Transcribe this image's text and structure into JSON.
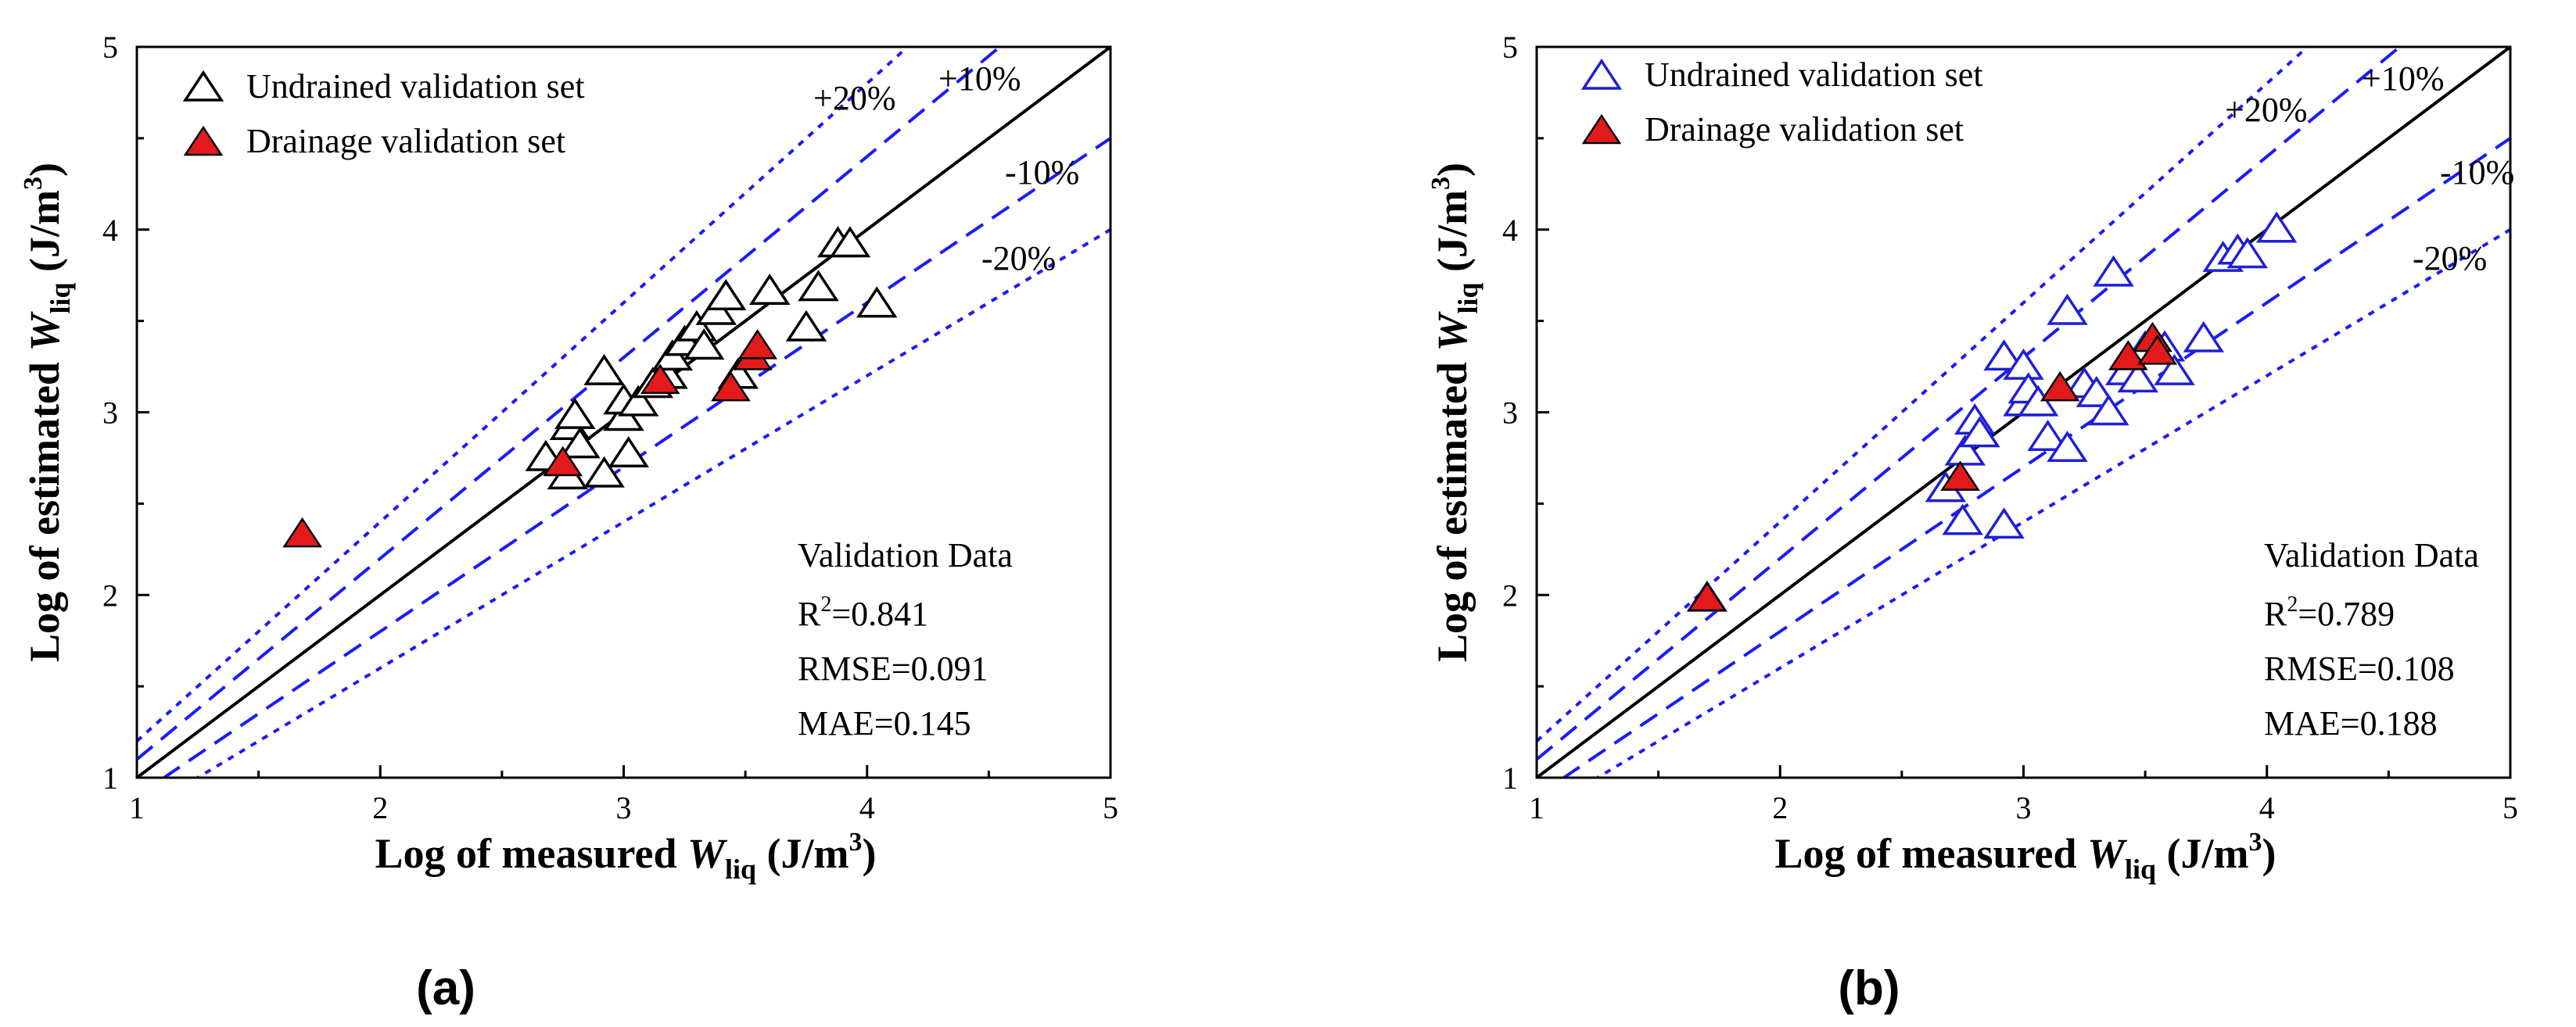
{
  "colors": {
    "identity": "#000000",
    "band10": "#1a1aff",
    "band20": "#1a1aff",
    "drainage_fill": "#e31a1c",
    "undrained_a": "#000000",
    "undrained_b": "#1f1fd6"
  },
  "chart_data": [
    {
      "type": "scatter",
      "panel_label": "(a)",
      "xlabel": {
        "prefix": "Log of measured ",
        "var": "W",
        "sub": "liq",
        "unit_pre": " (J/m",
        "unit_sup": "3",
        "unit_post": ")"
      },
      "ylabel": {
        "prefix": "Log of estimated ",
        "var": "W",
        "sub": "liq",
        "unit_pre": " (J/m",
        "unit_sup": "3",
        "unit_post": ")"
      },
      "xlim": [
        1,
        5
      ],
      "ylim": [
        1,
        5
      ],
      "xticks": [
        "1",
        "2",
        "3",
        "4",
        "5"
      ],
      "yticks": [
        "1",
        "2",
        "3",
        "4",
        "5"
      ],
      "band_labels": [
        "+20%",
        "+10%",
        "-10%",
        "-20%"
      ],
      "legend": [
        "Undrained validation set",
        "Drainage validation set"
      ],
      "stats": [
        "Validation Data",
        "R",
        "2",
        "=0.841",
        "RMSE=0.091",
        "MAE=0.145"
      ],
      "series": [
        {
          "name": "Undrained validation set",
          "marker": "open-triangle",
          "points": [
            [
              2.68,
              2.75
            ],
            [
              2.77,
              2.65
            ],
            [
              2.78,
              2.92
            ],
            [
              2.8,
              2.98
            ],
            [
              2.82,
              2.82
            ],
            [
              2.92,
              2.66
            ],
            [
              2.92,
              3.22
            ],
            [
              3.0,
              2.97
            ],
            [
              3.0,
              3.06
            ],
            [
              3.02,
              2.77
            ],
            [
              3.06,
              3.05
            ],
            [
              3.12,
              3.15
            ],
            [
              3.18,
              3.2
            ],
            [
              3.2,
              3.3
            ],
            [
              3.25,
              3.38
            ],
            [
              3.3,
              3.46
            ],
            [
              3.33,
              3.36
            ],
            [
              3.38,
              3.55
            ],
            [
              3.42,
              3.63
            ],
            [
              3.47,
              3.2
            ],
            [
              3.6,
              3.66
            ],
            [
              3.75,
              3.46
            ],
            [
              3.8,
              3.68
            ],
            [
              3.88,
              3.92
            ],
            [
              3.93,
              3.92
            ],
            [
              4.04,
              3.59
            ]
          ]
        },
        {
          "name": "Drainage validation set",
          "marker": "filled-triangle",
          "points": [
            [
              1.68,
              2.33
            ],
            [
              2.75,
              2.72
            ],
            [
              3.15,
              3.17
            ],
            [
              3.44,
              3.13
            ],
            [
              3.53,
              3.3
            ],
            [
              3.55,
              3.36
            ]
          ]
        }
      ]
    },
    {
      "type": "scatter",
      "panel_label": "(b)",
      "xlabel": {
        "prefix": "Log of measured ",
        "var": "W",
        "sub": "liq",
        "unit_pre": " (J/m",
        "unit_sup": "3",
        "unit_post": ")"
      },
      "ylabel": {
        "prefix": "Log of estimated ",
        "var": "W",
        "sub": "liq",
        "unit_pre": " (J/m",
        "unit_sup": "3",
        "unit_post": ")"
      },
      "xlim": [
        1,
        5
      ],
      "ylim": [
        1,
        5
      ],
      "xticks": [
        "1",
        "2",
        "3",
        "4",
        "5"
      ],
      "yticks": [
        "1",
        "2",
        "3",
        "4",
        "5"
      ],
      "band_labels": [
        "+20%",
        "+10%",
        "-10%",
        "-20%"
      ],
      "legend": [
        "Undrained validation set",
        "Drainage validation set"
      ],
      "stats": [
        "Validation Data",
        "R",
        "2",
        "=0.789",
        "RMSE=0.108",
        "MAE=0.188"
      ],
      "series": [
        {
          "name": "Undrained validation set",
          "marker": "open-triangle",
          "points": [
            [
              1.7,
              1.98
            ],
            [
              2.68,
              2.58
            ],
            [
              2.75,
              2.4
            ],
            [
              2.76,
              2.78
            ],
            [
              2.8,
              2.95
            ],
            [
              2.82,
              2.88
            ],
            [
              2.92,
              2.38
            ],
            [
              2.92,
              3.3
            ],
            [
              3.0,
              3.05
            ],
            [
              3.0,
              3.25
            ],
            [
              3.02,
              3.12
            ],
            [
              3.06,
              3.05
            ],
            [
              3.1,
              2.86
            ],
            [
              3.18,
              2.8
            ],
            [
              3.18,
              3.55
            ],
            [
              3.25,
              3.15
            ],
            [
              3.3,
              3.1
            ],
            [
              3.35,
              3.0
            ],
            [
              3.37,
              3.76
            ],
            [
              3.42,
              3.22
            ],
            [
              3.47,
              3.18
            ],
            [
              3.5,
              3.35
            ],
            [
              3.58,
              3.35
            ],
            [
              3.62,
              3.22
            ],
            [
              3.74,
              3.4
            ],
            [
              3.82,
              3.84
            ],
            [
              3.88,
              3.88
            ],
            [
              3.92,
              3.86
            ],
            [
              4.04,
              4.0
            ]
          ]
        },
        {
          "name": "Drainage validation set",
          "marker": "filled-triangle",
          "points": [
            [
              1.7,
              1.98
            ],
            [
              2.74,
              2.64
            ],
            [
              3.15,
              3.13
            ],
            [
              3.43,
              3.3
            ],
            [
              3.53,
              3.4
            ],
            [
              3.55,
              3.33
            ]
          ]
        }
      ]
    }
  ]
}
